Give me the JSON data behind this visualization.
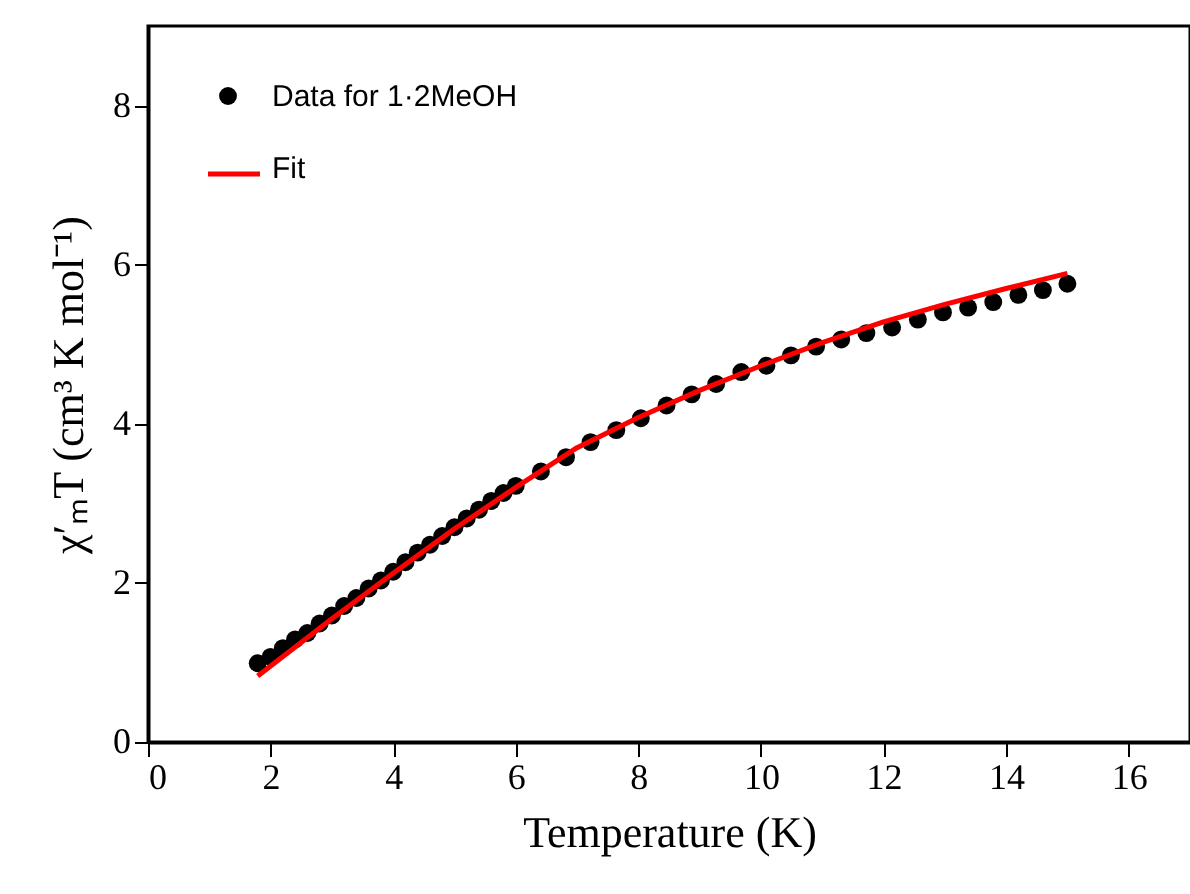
{
  "chart_data": {
    "type": "scatter",
    "xlabel": "Temperature (K)",
    "ylabel": "χ′ₘT (cm³ K mol⁻¹)",
    "xlim": [
      0,
      17
    ],
    "ylim": [
      0,
      9
    ],
    "xticks": [
      0,
      2,
      4,
      6,
      8,
      10,
      12,
      14,
      16
    ],
    "yticks": [
      0,
      2,
      4,
      6,
      8
    ],
    "grid": false,
    "legend": "top left",
    "series": [
      {
        "name": "Data for 1·2MeOH",
        "marker": "circle",
        "color": "#000000",
        "x": [
          1.79,
          2.0,
          2.2,
          2.4,
          2.6,
          2.8,
          3.0,
          3.2,
          3.4,
          3.6,
          3.8,
          4.0,
          4.2,
          4.4,
          4.6,
          4.8,
          5.0,
          5.2,
          5.4,
          5.6,
          5.8,
          6.0,
          6.41,
          6.82,
          7.22,
          7.64,
          8.04,
          8.46,
          8.87,
          9.27,
          9.68,
          10.09,
          10.49,
          10.9,
          11.31,
          11.72,
          12.14,
          12.56,
          12.97,
          13.38,
          13.79,
          14.2,
          14.6,
          15.0
        ],
        "values": [
          0.99,
          1.07,
          1.18,
          1.29,
          1.37,
          1.49,
          1.59,
          1.71,
          1.81,
          1.93,
          2.03,
          2.14,
          2.26,
          2.38,
          2.48,
          2.59,
          2.7,
          2.81,
          2.92,
          3.03,
          3.13,
          3.22,
          3.4,
          3.58,
          3.77,
          3.92,
          4.07,
          4.23,
          4.37,
          4.5,
          4.65,
          4.73,
          4.86,
          4.97,
          5.06,
          5.14,
          5.21,
          5.31,
          5.4,
          5.46,
          5.53,
          5.62,
          5.68,
          5.76
        ]
      },
      {
        "name": "Fit",
        "type": "line",
        "line_style": "solid",
        "color": "#ff0000",
        "x": [
          1.79,
          3,
          4,
          5,
          6,
          7,
          8,
          9,
          10,
          11,
          12,
          13,
          14,
          15
        ],
        "values": [
          0.83,
          1.55,
          2.12,
          2.68,
          3.2,
          3.7,
          4.08,
          4.42,
          4.73,
          5.02,
          5.28,
          5.5,
          5.7,
          5.89
        ]
      }
    ]
  }
}
